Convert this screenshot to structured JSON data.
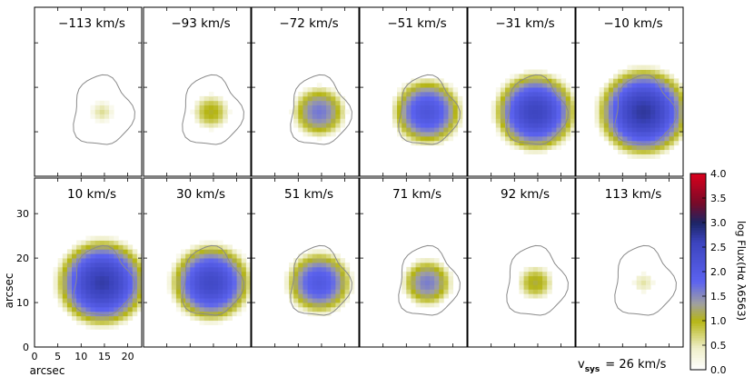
{
  "chart_data": {
    "type": "heatmap",
    "panels": [
      {
        "velocity_label": "−113 km/s",
        "peak": 0.6,
        "sigma": 0.75
      },
      {
        "velocity_label": "−93 km/s",
        "peak": 1.05,
        "sigma": 0.95
      },
      {
        "velocity_label": "−72 km/s",
        "peak": 1.65,
        "sigma": 1.05
      },
      {
        "velocity_label": "−51 km/s",
        "peak": 2.15,
        "sigma": 1.2
      },
      {
        "velocity_label": "−31 km/s",
        "peak": 2.55,
        "sigma": 1.3
      },
      {
        "velocity_label": "−10 km/s",
        "peak": 2.75,
        "sigma": 1.4
      },
      {
        "velocity_label": "10 km/s",
        "peak": 2.7,
        "sigma": 1.4
      },
      {
        "velocity_label": "30 km/s",
        "peak": 2.45,
        "sigma": 1.3
      },
      {
        "velocity_label": "51 km/s",
        "peak": 2.05,
        "sigma": 1.15
      },
      {
        "velocity_label": "71 km/s",
        "peak": 1.6,
        "sigma": 1.0
      },
      {
        "velocity_label": "92 km/s",
        "peak": 1.1,
        "sigma": 0.9
      },
      {
        "velocity_label": "113 km/s",
        "peak": 0.55,
        "sigma": 0.75
      }
    ],
    "xlabel": "arcsec",
    "ylabel": "arcsec",
    "xticks": [
      "0",
      "5",
      "10",
      "15",
      "20"
    ],
    "yticks": [
      "0",
      "10",
      "20",
      "30"
    ],
    "xlim": [
      0,
      23
    ],
    "ylim": [
      0,
      38
    ],
    "colorbar": {
      "label": "log Flux(Hα λ6563)",
      "range": [
        0.0,
        4.0
      ],
      "ticks": [
        "0.0",
        "0.5",
        "1.0",
        "1.5",
        "2.0",
        "2.5",
        "3.0",
        "3.5",
        "4.0"
      ]
    },
    "vsys_label": "= 26 km/s",
    "vsys_symbol": "v",
    "vsys_subscript": "sys",
    "colors": {
      "low": "#ffffff",
      "yellow": "#b5b514",
      "blue": "#5c63f0",
      "navy": "#1c2566",
      "red": "#d9001c",
      "contour": "#8a8a8a"
    }
  }
}
